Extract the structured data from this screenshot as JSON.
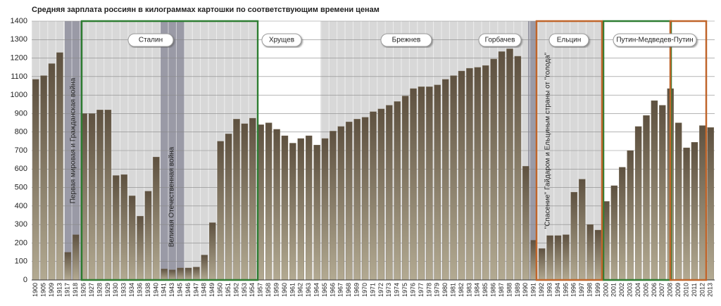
{
  "chart_data": {
    "type": "bar",
    "title": "Средняя зарплата россиян в килограммах картошки по соответствующим времени ценам",
    "categories": [
      "1900",
      "1905",
      "1909",
      "1913",
      "1917",
      "1918",
      "1926",
      "1927",
      "1928",
      "1929",
      "1930",
      "1933",
      "1934",
      "1936",
      "1938",
      "1940",
      "1941",
      "1943",
      "1945",
      "1946",
      "1947",
      "1948",
      "1949",
      "1950",
      "1951",
      "1952",
      "1953",
      "1954",
      "1957",
      "1958",
      "1959",
      "1960",
      "1961",
      "1962",
      "1963",
      "1964",
      "1965",
      "1966",
      "1967",
      "1968",
      "1969",
      "1970",
      "1971",
      "1972",
      "1973",
      "1974",
      "1975",
      "1976",
      "1977",
      "1978",
      "1979",
      "1980",
      "1981",
      "1982",
      "1983",
      "1984",
      "1985",
      "1986",
      "1987",
      "1988",
      "1989",
      "1990",
      "1991",
      "1992",
      "1993",
      "1994",
      "1995",
      "1996",
      "1997",
      "1998",
      "1999",
      "2000",
      "2001",
      "2002",
      "2003",
      "2004",
      "2005",
      "2006",
      "2007",
      "2008",
      "2009",
      "2010",
      "2011",
      "2012",
      "2013"
    ],
    "values": [
      1085,
      1105,
      1170,
      1230,
      150,
      245,
      900,
      900,
      920,
      920,
      565,
      570,
      455,
      345,
      480,
      665,
      60,
      55,
      65,
      65,
      70,
      135,
      310,
      750,
      790,
      870,
      845,
      875,
      840,
      850,
      815,
      780,
      740,
      765,
      780,
      730,
      765,
      805,
      830,
      855,
      870,
      880,
      910,
      925,
      945,
      965,
      995,
      1035,
      1045,
      1045,
      1055,
      1085,
      1105,
      1130,
      1145,
      1150,
      1160,
      1195,
      1235,
      1250,
      1210,
      615,
      215,
      170,
      240,
      240,
      245,
      475,
      545,
      300,
      270,
      425,
      510,
      610,
      700,
      830,
      890,
      970,
      945,
      1035,
      850,
      715,
      745,
      835,
      825
    ],
    "color": "#7a6d58",
    "ylim": [
      0,
      1400
    ],
    "yticks": [
      0,
      100,
      200,
      300,
      400,
      500,
      600,
      700,
      800,
      900,
      1000,
      1100,
      1200,
      1300,
      1400
    ],
    "grid": true,
    "annotations": [
      "Сталин",
      "Хрущев",
      "Брежнев",
      "Горбачев",
      "Ельцин",
      "Путин-Медведев-Путин"
    ],
    "vertical_notes": [
      "Первая мировая и Гражданская война",
      "Великая Отечественная война",
      "\"Спасение\" Гайдаром и Ельциным страны от \"голода\""
    ]
  }
}
